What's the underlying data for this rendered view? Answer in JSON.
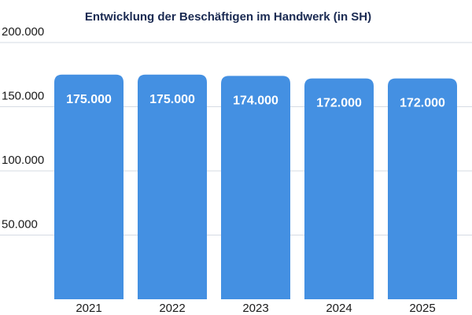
{
  "chart_data": {
    "type": "bar",
    "title": "Entwicklung der Beschäftigen im Handwerk (in SH)",
    "categories": [
      "2021",
      "2022",
      "2023",
      "2024",
      "2025"
    ],
    "values": [
      175000,
      175000,
      174000,
      172000,
      172000
    ],
    "data_labels": [
      "175.000",
      "175.000",
      "174.000",
      "172.000",
      "172.000"
    ],
    "yticks": [
      50000,
      100000,
      150000,
      200000
    ],
    "ytick_labels": [
      "50.000",
      "100.000",
      "150.000",
      "200.000"
    ],
    "ylim": [
      0,
      200000
    ],
    "xlabel": "",
    "ylabel": "",
    "grid": true,
    "legend": "none"
  },
  "colors": {
    "bar": "#4490e2",
    "grid": "#d6dbe3",
    "title": "#1a2a52",
    "bar_label": "#ffffff",
    "axis_text": "#1a1a1a"
  }
}
